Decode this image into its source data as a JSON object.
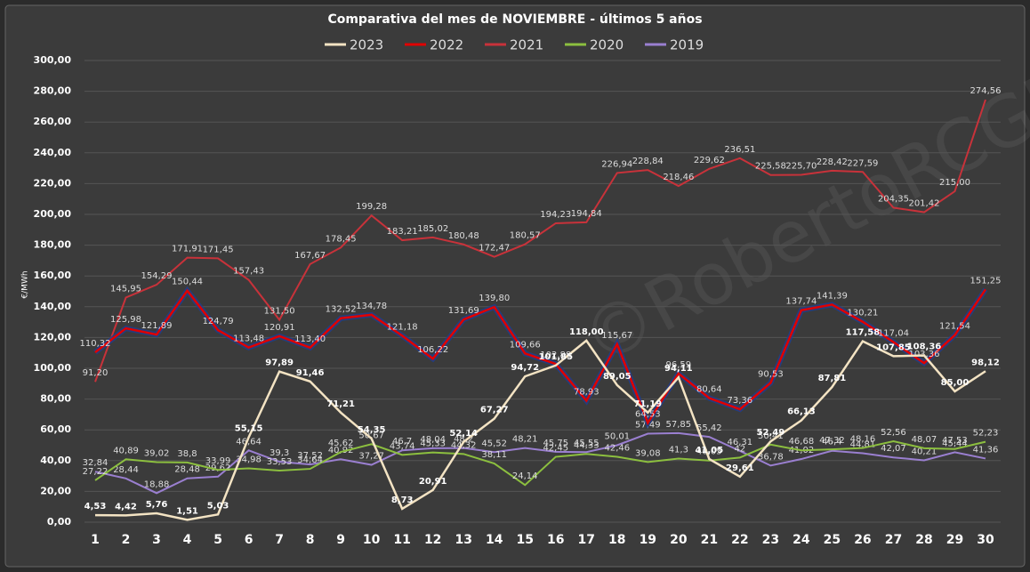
{
  "chart_data": {
    "type": "line",
    "title": "Comparativa  del mes de NOVIEMBRE - últimos 5 años",
    "y_label": "€/MWh",
    "watermark": "©RobertoRCGING",
    "categories": [
      "1",
      "2",
      "3",
      "4",
      "5",
      "6",
      "7",
      "8",
      "9",
      "10",
      "11",
      "12",
      "13",
      "14",
      "15",
      "16",
      "17",
      "18",
      "19",
      "20",
      "21",
      "22",
      "23",
      "24",
      "25",
      "26",
      "27",
      "28",
      "29",
      "30"
    ],
    "ylim": [
      0,
      300
    ],
    "yticks": [
      {
        "value": 0,
        "label": "0,00"
      },
      {
        "value": 20,
        "label": "20,00"
      },
      {
        "value": 40,
        "label": "40,00"
      },
      {
        "value": 60,
        "label": "60,00"
      },
      {
        "value": 80,
        "label": "80,00"
      },
      {
        "value": 100,
        "label": "100,00"
      },
      {
        "value": 120,
        "label": "120,00"
      },
      {
        "value": 140,
        "label": "140,00"
      },
      {
        "value": 160,
        "label": "160,00"
      },
      {
        "value": 180,
        "label": "180,00"
      },
      {
        "value": 200,
        "label": "200,00"
      },
      {
        "value": 220,
        "label": "220,00"
      },
      {
        "value": 240,
        "label": "240,00"
      },
      {
        "value": 260,
        "label": "260,00"
      },
      {
        "value": 280,
        "label": "280,00"
      },
      {
        "value": 300,
        "label": "300,00"
      }
    ],
    "grid": true,
    "legend": "top",
    "series": [
      {
        "name": "2023",
        "color": "#f3e3c3",
        "values": [
          4.53,
          4.42,
          5.76,
          1.51,
          5.03,
          55.15,
          97.89,
          91.46,
          71.21,
          54.35,
          8.73,
          20.91,
          52.14,
          67.27,
          94.72,
          101.85,
          118,
          89.05,
          71.19,
          94.11,
          41.05,
          29.61,
          52.49,
          66.13,
          87.81,
          117.58,
          107.85,
          108.36,
          85,
          98.12
        ],
        "value_labels": [
          "4,53",
          "4,42",
          "5,76",
          "1,51",
          "5,03",
          "55,15",
          "97,89",
          "91,46",
          "71,21",
          "54,35",
          "8,73",
          "20,91",
          "52,14",
          "67,27",
          "94,72",
          "101,85",
          "118,00",
          "89,05",
          "71,19",
          "94,11",
          "41,05",
          "29,61",
          "52,49",
          "66,13",
          "87,81",
          "117,58",
          "107,85",
          "108,36",
          "85,00",
          "98,12"
        ]
      },
      {
        "name": "2022",
        "color": "#e00000",
        "values": [
          110.32,
          125.98,
          121.89,
          150.44,
          124.79,
          113.48,
          120.91,
          113.4,
          132.52,
          134.78,
          121.18,
          106.22,
          131.69,
          139.8,
          109.66,
          102.88,
          78.93,
          115.67,
          64.53,
          96.59,
          80.64,
          73.36,
          90.53,
          137.74,
          141.39,
          130.21,
          117.04,
          103.36,
          121.54,
          151.25
        ],
        "value_labels": [
          "110,32",
          "125,98",
          "121,89",
          "150,44",
          "124,79",
          "113,48",
          "120,91",
          "113,40",
          "132,52",
          "134,78",
          "121,18",
          "106,22",
          "131,69",
          "139,80",
          "109,66",
          "102,88",
          "78,93",
          "115,67",
          "64,53",
          "96,59",
          "80,64",
          "73,36",
          "90,53",
          "137,74",
          "141,39",
          "130,21",
          "117,04",
          "103,36",
          "121,54",
          "151,25"
        ]
      },
      {
        "name": "2021",
        "color": "#c8323a",
        "values": [
          91.2,
          145.95,
          154.29,
          171.91,
          171.45,
          157.43,
          131.5,
          167.67,
          178.45,
          199.28,
          183.21,
          185.02,
          180.48,
          172.47,
          180.57,
          194.23,
          194.84,
          226.94,
          228.84,
          218.46,
          229.62,
          236.51,
          225.58,
          225.7,
          228.42,
          227.59,
          204.35,
          201.42,
          215,
          274.56
        ],
        "value_labels": [
          "91,20",
          "145,95",
          "154,29",
          "171,91",
          "171,45",
          "157,43",
          "131,50",
          "167,67",
          "178,45",
          "199,28",
          "183,21",
          "185,02",
          "180,48",
          "172,47",
          "180,57",
          "194,23",
          "194,84",
          "226,94",
          "228,84",
          "218,46",
          "229,62",
          "236,51",
          "225,58",
          "225,70",
          "228,42",
          "227,59",
          "204,35",
          "201,42",
          "215,00",
          "274,56"
        ]
      },
      {
        "name": "2020",
        "color": "#8cbf3f",
        "values": [
          27.22,
          40.89,
          39.02,
          38.8,
          33.99,
          34.98,
          33.53,
          34.64,
          45.62,
          50.67,
          43.74,
          45.33,
          44.32,
          38.11,
          24.14,
          42.45,
          44.33,
          42.46,
          39.08,
          41.3,
          40.05,
          42,
          50.41,
          46.68,
          47.32,
          48.16,
          52.56,
          48.07,
          47.53,
          52.23
        ],
        "value_labels": [
          "27,22",
          "40,89",
          "39,02",
          "38,8",
          "33,99",
          "34,98",
          "33,53",
          "34,64",
          "45,62",
          "50,67",
          "43,74",
          "45,33",
          "44,32",
          "38,11",
          "24,14",
          "42,45",
          "44,33",
          "42,46",
          "39,08",
          "41,3",
          "40,05",
          "42",
          "50,41",
          "46,68",
          "47,32",
          "48,16",
          "52,56",
          "48,07",
          "47,53",
          "52,23"
        ]
      },
      {
        "name": "2019",
        "color": "#9a7fd0",
        "values": [
          32.84,
          28.44,
          18.88,
          28.48,
          29.62,
          46.64,
          39.3,
          37.52,
          40.92,
          37.27,
          46.7,
          48.04,
          48.2,
          45.52,
          48.21,
          45.75,
          45.55,
          50.01,
          57.49,
          57.85,
          55.42,
          46.31,
          36.78,
          41.02,
          46.4,
          44.81,
          42.07,
          40.21,
          45.44,
          41.36
        ],
        "value_labels": [
          "32,84",
          "28,44",
          "18,88",
          "28,48",
          "29,62",
          "46,64",
          "39,3",
          "37,52",
          "40,92",
          "37,27",
          "46,7",
          "48,04",
          "48,2",
          "45,52",
          "48,21",
          "45,75",
          "45,55",
          "50,01",
          "57,49",
          "57,85",
          "55,42",
          "46,31",
          "36,78",
          "41,02",
          "46,4",
          "44,81",
          "42,07",
          "40,21",
          "45,44",
          "41,36"
        ]
      }
    ]
  }
}
